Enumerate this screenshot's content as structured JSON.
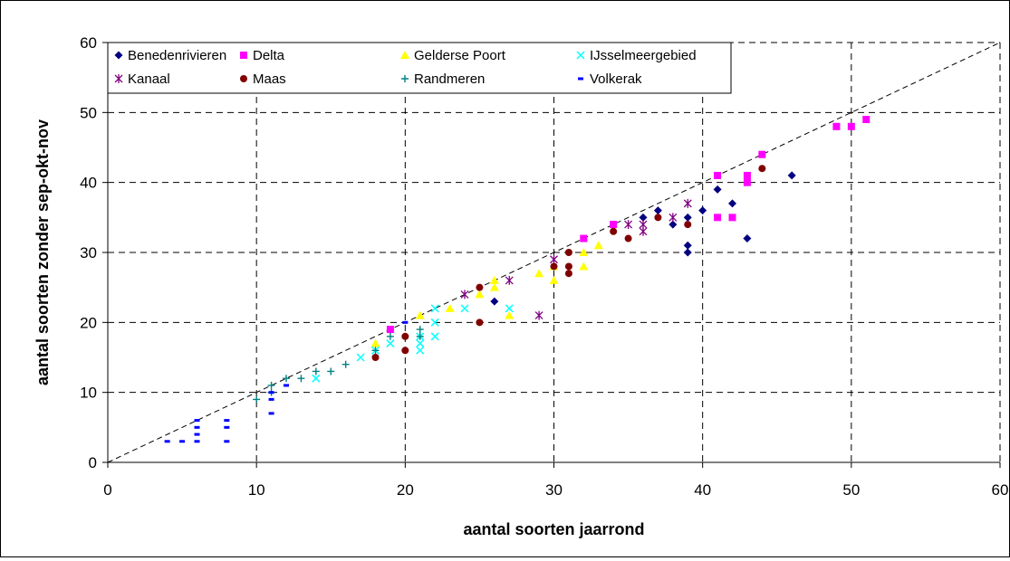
{
  "chart_data": {
    "type": "scatter",
    "title": "",
    "xlabel": "aantal soorten jaarrond",
    "ylabel": "aantal soorten zonder sep-okt-nov",
    "xlim": [
      0,
      60
    ],
    "ylim": [
      0,
      60
    ],
    "x_ticks": [
      0,
      10,
      20,
      30,
      40,
      50,
      60
    ],
    "y_ticks": [
      0,
      10,
      20,
      30,
      40,
      50,
      60
    ],
    "grid": "dashed",
    "legend_position": "top-left",
    "reference_line": {
      "style": "dashed",
      "from": [
        0,
        0
      ],
      "to": [
        60,
        60
      ]
    },
    "series": [
      {
        "name": "Benedenrivieren",
        "marker": "diamond",
        "color": "#000080",
        "points": [
          [
            26,
            23
          ],
          [
            36,
            35
          ],
          [
            37,
            36
          ],
          [
            38,
            34
          ],
          [
            39,
            35
          ],
          [
            39,
            31
          ],
          [
            39,
            30
          ],
          [
            40,
            36
          ],
          [
            41,
            39
          ],
          [
            42,
            37
          ],
          [
            43,
            32
          ],
          [
            46,
            41
          ]
        ]
      },
      {
        "name": "Delta",
        "marker": "square",
        "color": "#ff00ff",
        "points": [
          [
            19,
            19
          ],
          [
            32,
            32
          ],
          [
            34,
            34
          ],
          [
            41,
            41
          ],
          [
            41,
            35
          ],
          [
            42,
            35
          ],
          [
            43,
            41
          ],
          [
            43,
            40
          ],
          [
            44,
            44
          ],
          [
            49,
            48
          ],
          [
            50,
            48
          ],
          [
            51,
            49
          ]
        ]
      },
      {
        "name": "Gelderse Poort",
        "marker": "triangle",
        "color": "#ffff00",
        "points": [
          [
            18,
            17
          ],
          [
            21,
            21
          ],
          [
            23,
            22
          ],
          [
            25,
            24
          ],
          [
            26,
            26
          ],
          [
            26,
            25
          ],
          [
            27,
            21
          ],
          [
            29,
            27
          ],
          [
            30,
            26
          ],
          [
            30,
            28
          ],
          [
            32,
            30
          ],
          [
            32,
            28
          ],
          [
            33,
            31
          ]
        ]
      },
      {
        "name": "IJsselmeergebied",
        "marker": "x",
        "color": "#00ffff",
        "points": [
          [
            14,
            12
          ],
          [
            17,
            15
          ],
          [
            18,
            16
          ],
          [
            19,
            17
          ],
          [
            21,
            17
          ],
          [
            21,
            16
          ],
          [
            21,
            18
          ],
          [
            22,
            22
          ],
          [
            22,
            20
          ],
          [
            22,
            18
          ],
          [
            24,
            22
          ],
          [
            27,
            22
          ]
        ]
      },
      {
        "name": "Kanaal",
        "marker": "asterisk",
        "color": "#800080",
        "points": [
          [
            24,
            24
          ],
          [
            27,
            26
          ],
          [
            29,
            21
          ],
          [
            30,
            29
          ],
          [
            35,
            34
          ],
          [
            36,
            33
          ],
          [
            36,
            34
          ],
          [
            38,
            35
          ],
          [
            39,
            37
          ]
        ]
      },
      {
        "name": "Maas",
        "marker": "circle",
        "color": "#800000",
        "points": [
          [
            18,
            15
          ],
          [
            20,
            18
          ],
          [
            20,
            16
          ],
          [
            25,
            25
          ],
          [
            25,
            20
          ],
          [
            30,
            28
          ],
          [
            31,
            30
          ],
          [
            31,
            28
          ],
          [
            31,
            27
          ],
          [
            34,
            33
          ],
          [
            35,
            32
          ],
          [
            37,
            35
          ],
          [
            39,
            34
          ],
          [
            44,
            42
          ]
        ]
      },
      {
        "name": "Randmeren",
        "marker": "plus",
        "color": "#008080",
        "points": [
          [
            10,
            9
          ],
          [
            11,
            10
          ],
          [
            11,
            11
          ],
          [
            12,
            12
          ],
          [
            13,
            12
          ],
          [
            14,
            13
          ],
          [
            15,
            13
          ],
          [
            16,
            14
          ],
          [
            18,
            16
          ],
          [
            19,
            18
          ],
          [
            21,
            19
          ],
          [
            21,
            18
          ]
        ]
      },
      {
        "name": "Volkerak",
        "marker": "dash",
        "color": "#0000ff",
        "points": [
          [
            4,
            3
          ],
          [
            5,
            3
          ],
          [
            6,
            3
          ],
          [
            6,
            4
          ],
          [
            6,
            5
          ],
          [
            6,
            6
          ],
          [
            8,
            3
          ],
          [
            8,
            5
          ],
          [
            8,
            6
          ],
          [
            11,
            7
          ],
          [
            11,
            9
          ],
          [
            11,
            10
          ],
          [
            12,
            11
          ],
          [
            20,
            20
          ]
        ]
      }
    ]
  }
}
